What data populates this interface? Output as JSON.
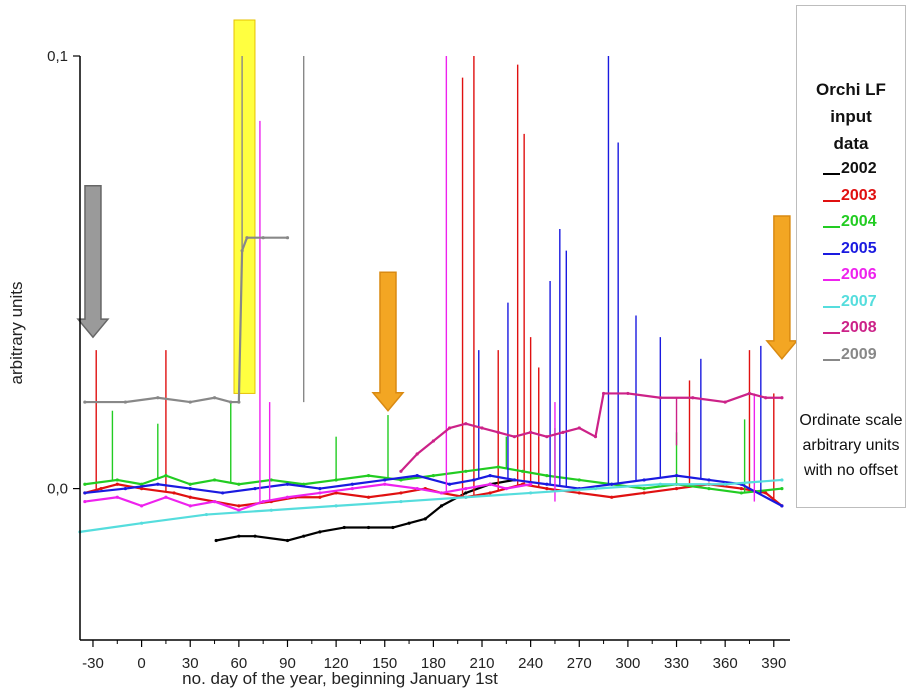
{
  "chart_data": {
    "type": "line",
    "title": "",
    "xlabel": "no. day of the year, beginning January 1st",
    "ylabel": "arbitrary units",
    "xlim": [
      -38,
      400
    ],
    "ylim": [
      -0.035,
      0.1
    ],
    "x_ticks": [
      -30,
      0,
      30,
      60,
      90,
      120,
      150,
      180,
      210,
      240,
      270,
      300,
      330,
      360,
      390
    ],
    "x_tick_labels": [
      "-30",
      "0",
      "30",
      "60",
      "90",
      "120",
      "150",
      "180",
      "210",
      "240",
      "270",
      "300",
      "330",
      "360",
      "390"
    ],
    "y_ticks": [
      0.0,
      0.1
    ],
    "y_tick_labels": [
      "0,0",
      "0,1"
    ],
    "grid": false,
    "legend": {
      "position": "right-outside",
      "title_lines": [
        "Orchi LF",
        "input",
        "data"
      ],
      "note_lines": [
        "Ordinate scale",
        "arbitrary units",
        "with no offset"
      ]
    },
    "series": [
      {
        "name": "2002",
        "color": "#000000",
        "x": [
          46,
          60,
          70,
          90,
          100,
          110,
          125,
          140,
          155,
          165,
          175,
          185,
          200,
          215,
          230
        ],
        "y": [
          -0.012,
          -0.011,
          -0.011,
          -0.012,
          -0.011,
          -0.01,
          -0.009,
          -0.009,
          -0.009,
          -0.008,
          -0.007,
          -0.004,
          -0.001,
          0.001,
          0.002
        ],
        "spikes": []
      },
      {
        "name": "2003",
        "color": "#e01010",
        "x": [
          -35,
          -25,
          -15,
          0,
          20,
          30,
          45,
          60,
          80,
          95,
          110,
          120,
          140,
          160,
          175,
          185,
          200,
          215,
          235,
          250,
          270,
          290,
          310,
          330,
          350,
          370,
          385,
          395
        ],
        "y": [
          -0.001,
          0.0,
          0.001,
          0.0,
          -0.001,
          -0.002,
          -0.003,
          -0.004,
          -0.003,
          -0.002,
          -0.002,
          -0.001,
          -0.002,
          -0.001,
          0.0,
          -0.001,
          -0.002,
          -0.001,
          0.001,
          0.0,
          -0.001,
          -0.002,
          -0.001,
          0.0,
          0.001,
          0.0,
          -0.001,
          -0.004
        ],
        "spikes": [
          [
            -28,
            0.032
          ],
          [
            15,
            0.032
          ],
          [
            198,
            0.095
          ],
          [
            205,
            0.1
          ],
          [
            220,
            0.032
          ],
          [
            232,
            0.098
          ],
          [
            236,
            0.082
          ],
          [
            240,
            0.035
          ],
          [
            245,
            0.028
          ],
          [
            338,
            0.025
          ],
          [
            375,
            0.032
          ],
          [
            390,
            0.022
          ]
        ]
      },
      {
        "name": "2004",
        "color": "#22cc22",
        "x": [
          -35,
          -15,
          0,
          15,
          30,
          45,
          60,
          80,
          100,
          120,
          140,
          160,
          180,
          200,
          220,
          235,
          250,
          270,
          290,
          310,
          330,
          350,
          370,
          395
        ],
        "y": [
          0.001,
          0.002,
          0.001,
          0.003,
          0.001,
          0.002,
          0.001,
          0.002,
          0.001,
          0.002,
          0.003,
          0.002,
          0.003,
          0.004,
          0.005,
          0.004,
          0.003,
          0.002,
          0.001,
          0.0,
          0.001,
          0.0,
          -0.001,
          0.0
        ],
        "spikes": [
          [
            -18,
            0.018
          ],
          [
            10,
            0.015
          ],
          [
            55,
            0.02
          ],
          [
            120,
            0.012
          ],
          [
            152,
            0.017
          ],
          [
            225,
            0.012
          ],
          [
            255,
            0.014
          ],
          [
            330,
            0.013
          ],
          [
            372,
            0.016
          ]
        ]
      },
      {
        "name": "2005",
        "color": "#1a1ae0",
        "x": [
          -35,
          -10,
          10,
          30,
          50,
          70,
          90,
          110,
          130,
          150,
          170,
          190,
          205,
          215,
          230,
          250,
          270,
          290,
          310,
          330,
          350,
          370,
          395
        ],
        "y": [
          -0.001,
          0.0,
          0.001,
          0.0,
          -0.001,
          0.0,
          0.001,
          0.0,
          0.001,
          0.002,
          0.003,
          0.001,
          0.002,
          0.003,
          0.002,
          0.001,
          0.0,
          0.001,
          0.002,
          0.003,
          0.002,
          0.001,
          -0.004
        ],
        "spikes": [
          [
            208,
            0.032
          ],
          [
            226,
            0.043
          ],
          [
            252,
            0.048
          ],
          [
            258,
            0.06
          ],
          [
            262,
            0.055
          ],
          [
            288,
            0.1
          ],
          [
            294,
            0.08
          ],
          [
            305,
            0.04
          ],
          [
            320,
            0.035
          ],
          [
            345,
            0.03
          ],
          [
            382,
            0.033
          ]
        ]
      },
      {
        "name": "2006",
        "color": "#ee22ee",
        "x": [
          -35,
          -15,
          0,
          15,
          30,
          45,
          60,
          75,
          90,
          110,
          130,
          150,
          170,
          185,
          200,
          215,
          225,
          240
        ],
        "y": [
          -0.003,
          -0.002,
          -0.004,
          -0.002,
          -0.004,
          -0.003,
          -0.005,
          -0.003,
          -0.002,
          -0.001,
          0.0,
          0.001,
          0.0,
          -0.001,
          0.0,
          0.001,
          0.0,
          0.001
        ],
        "spikes": [
          [
            73,
            0.085
          ],
          [
            79,
            0.02
          ],
          [
            188,
            0.1
          ],
          [
            255,
            0.02
          ],
          [
            378,
            0.022
          ]
        ]
      },
      {
        "name": "2007",
        "color": "#55dddd",
        "x": [
          -38,
          0,
          40,
          80,
          120,
          160,
          200,
          240,
          280,
          320,
          360,
          395
        ],
        "y": [
          -0.01,
          -0.008,
          -0.006,
          -0.005,
          -0.004,
          -0.003,
          -0.002,
          -0.001,
          0.0,
          0.001,
          0.001,
          0.002
        ],
        "spikes": []
      },
      {
        "name": "2008",
        "color": "#cc2288",
        "x": [
          160,
          170,
          180,
          190,
          200,
          210,
          220,
          230,
          240,
          250,
          260,
          270,
          280,
          285,
          300,
          320,
          340,
          360,
          375,
          385,
          395
        ],
        "y": [
          0.004,
          0.008,
          0.011,
          0.014,
          0.015,
          0.014,
          0.013,
          0.012,
          0.013,
          0.012,
          0.013,
          0.014,
          0.012,
          0.022,
          0.022,
          0.021,
          0.021,
          0.02,
          0.022,
          0.021,
          0.021
        ],
        "spikes": [
          [
            245,
            0.012
          ],
          [
            330,
            0.01
          ]
        ]
      },
      {
        "name": "2009",
        "color": "#888888",
        "x": [
          -35,
          -10,
          10,
          30,
          45,
          55,
          60,
          62,
          65,
          75,
          90
        ],
        "y": [
          0.02,
          0.02,
          0.021,
          0.02,
          0.021,
          0.02,
          0.02,
          0.055,
          0.058,
          0.058,
          0.058
        ],
        "spikes": [
          [
            62,
            0.1
          ],
          [
            100,
            0.1
          ]
        ]
      }
    ],
    "highlight_box": {
      "color": "#ffff00",
      "x_range": [
        57,
        65
      ],
      "y_range": [
        0.022,
        0.1
      ]
    },
    "arrows": [
      {
        "color": "gray",
        "x": -30,
        "y_top": 0.07,
        "y_tip": 0.035
      },
      {
        "color": "orange",
        "x": 152,
        "y_top": 0.05,
        "y_tip": 0.018
      },
      {
        "color": "orange",
        "x": 395,
        "y_top": 0.063,
        "y_tip": 0.03
      }
    ]
  }
}
